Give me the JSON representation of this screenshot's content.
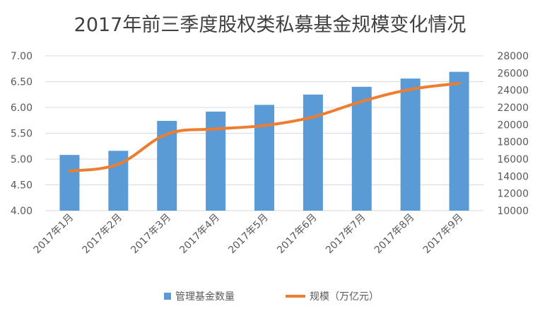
{
  "chart_data": {
    "type": "bar",
    "title": "2017年前三季度股权类私募基金规模变化情况",
    "categories": [
      "2017年1月",
      "2017年2月",
      "2017年3月",
      "2017年4月",
      "2017年5月",
      "2017年6月",
      "2017年7月",
      "2017年8月",
      "2017年9月"
    ],
    "series": [
      {
        "name": "管理基金数量",
        "type": "bar",
        "axis": "left",
        "color": "#5b9bd5",
        "values": [
          5.08,
          5.16,
          5.74,
          5.92,
          6.05,
          6.25,
          6.4,
          6.56,
          6.69
        ]
      },
      {
        "name": "规模（万亿元）",
        "type": "line",
        "axis": "right",
        "color": "#ed7d31",
        "values": [
          14600,
          15400,
          18900,
          19500,
          19900,
          20900,
          22700,
          24100,
          24800
        ]
      }
    ],
    "y_left": {
      "ylim": [
        4.0,
        7.0
      ],
      "ticks": [
        "4.00",
        "4.50",
        "5.00",
        "5.50",
        "6.00",
        "6.50",
        "7.00"
      ]
    },
    "y_right": {
      "ylim": [
        10000,
        28000
      ],
      "ticks": [
        "10000",
        "12000",
        "14000",
        "16000",
        "18000",
        "20000",
        "22000",
        "24000",
        "26000",
        "28000"
      ]
    },
    "grid": true,
    "legend": "bottom"
  }
}
